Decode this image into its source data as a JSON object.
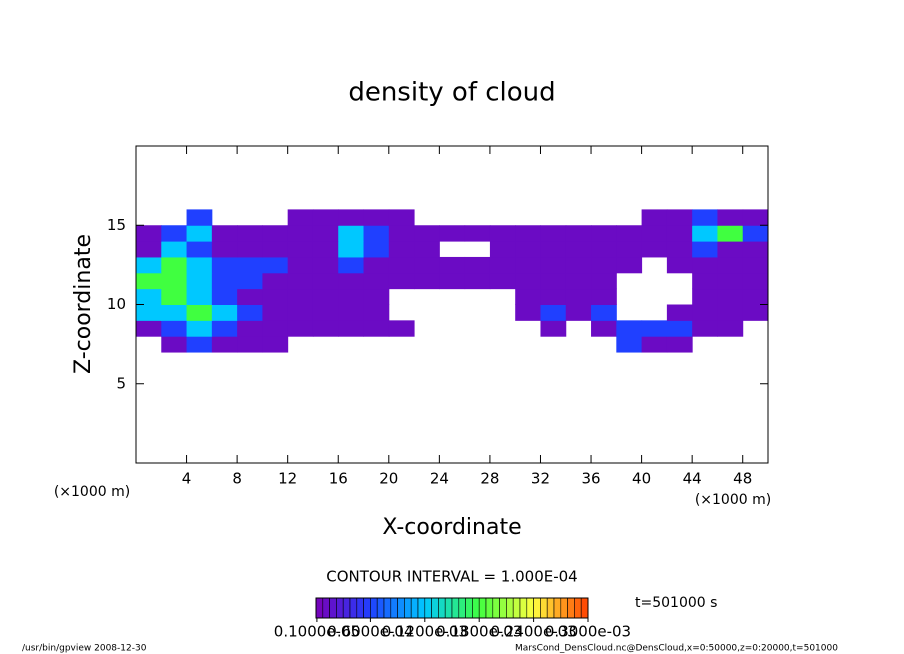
{
  "chart_data": {
    "type": "heatmap",
    "title": "density of cloud",
    "x_label": "X-coordinate",
    "y_label": "Z-coordinate",
    "x_unit": "(×1000 m)",
    "y_unit": "(×1000 m)",
    "xlim": [
      0,
      50
    ],
    "ylim": [
      0,
      20
    ],
    "xticks": [
      4,
      8,
      12,
      16,
      20,
      24,
      28,
      32,
      36,
      40,
      44,
      48
    ],
    "yticks": [
      5,
      10,
      15
    ],
    "xbins": [
      0,
      2,
      4,
      6,
      8,
      10,
      12,
      14,
      16,
      18,
      20,
      22,
      24,
      26,
      28,
      30,
      32,
      34,
      36,
      38,
      40,
      42,
      44,
      46,
      48,
      50
    ],
    "zbins": [
      7,
      8,
      9,
      10,
      11,
      12,
      13,
      14,
      15,
      16
    ],
    "values": [
      [
        null,
        1e-05,
        6e-05,
        1e-05,
        1e-05,
        1e-05,
        null,
        null,
        null,
        null,
        null,
        null,
        null,
        null,
        null,
        null,
        null,
        null,
        null,
        6e-05,
        1e-05,
        1e-05,
        null,
        null,
        null
      ],
      [
        1e-05,
        6e-05,
        0.00012,
        6e-05,
        1e-05,
        1e-05,
        1e-05,
        1e-05,
        1e-05,
        1e-05,
        1e-05,
        null,
        null,
        null,
        null,
        null,
        1e-05,
        null,
        1e-05,
        6e-05,
        6e-05,
        6e-05,
        1e-05,
        1e-05,
        null
      ],
      [
        0.00012,
        0.00012,
        0.00018,
        0.00012,
        6e-05,
        1e-05,
        1e-05,
        1e-05,
        1e-05,
        1e-05,
        null,
        null,
        null,
        null,
        null,
        1e-05,
        6e-05,
        1e-05,
        6e-05,
        null,
        null,
        1e-05,
        1e-05,
        1e-05,
        1e-05
      ],
      [
        0.00012,
        0.00018,
        0.00012,
        6e-05,
        1e-05,
        1e-05,
        1e-05,
        1e-05,
        1e-05,
        1e-05,
        null,
        null,
        null,
        null,
        null,
        1e-05,
        1e-05,
        1e-05,
        1e-05,
        null,
        null,
        null,
        1e-05,
        1e-05,
        1e-05
      ],
      [
        0.00018,
        0.00018,
        0.00012,
        6e-05,
        6e-05,
        1e-05,
        1e-05,
        1e-05,
        1e-05,
        1e-05,
        1e-05,
        1e-05,
        1e-05,
        1e-05,
        1e-05,
        1e-05,
        1e-05,
        1e-05,
        1e-05,
        null,
        null,
        null,
        1e-05,
        1e-05,
        1e-05
      ],
      [
        0.00012,
        0.00018,
        0.00012,
        6e-05,
        6e-05,
        6e-05,
        1e-05,
        1e-05,
        6e-05,
        1e-05,
        1e-05,
        1e-05,
        1e-05,
        1e-05,
        1e-05,
        1e-05,
        1e-05,
        1e-05,
        1e-05,
        1e-05,
        null,
        1e-05,
        1e-05,
        1e-05,
        1e-05
      ],
      [
        1e-05,
        0.00012,
        6e-05,
        1e-05,
        1e-05,
        1e-05,
        1e-05,
        1e-05,
        0.00012,
        6e-05,
        1e-05,
        1e-05,
        null,
        null,
        1e-05,
        1e-05,
        1e-05,
        1e-05,
        1e-05,
        1e-05,
        1e-05,
        1e-05,
        6e-05,
        1e-05,
        1e-05
      ],
      [
        1e-05,
        6e-05,
        0.00012,
        1e-05,
        1e-05,
        1e-05,
        1e-05,
        1e-05,
        0.00012,
        6e-05,
        1e-05,
        1e-05,
        1e-05,
        1e-05,
        1e-05,
        1e-05,
        1e-05,
        1e-05,
        1e-05,
        1e-05,
        1e-05,
        1e-05,
        0.00012,
        0.00018,
        6e-05
      ],
      [
        null,
        null,
        6e-05,
        null,
        null,
        null,
        1e-05,
        1e-05,
        1e-05,
        1e-05,
        1e-05,
        null,
        null,
        null,
        null,
        null,
        null,
        null,
        null,
        null,
        1e-05,
        1e-05,
        6e-05,
        1e-05,
        1e-05
      ]
    ],
    "colorscale": [
      "#7a00b8",
      "#2040ff",
      "#00c8ff",
      "#40ff40",
      "#ffff40",
      "#ff4000"
    ],
    "clim": [
      0,
      0.0003
    ],
    "contour_label": "CONTOUR INTERVAL = 1.000E-04",
    "time_label": "t=501000 s",
    "colorbar_ticks": [
      {
        "value": 1e-06,
        "label": "0.1000e-05"
      },
      {
        "value": 6e-05,
        "label": "0.6000e-04"
      },
      {
        "value": 0.00012,
        "label": "0.1200e-03"
      },
      {
        "value": 0.00018,
        "label": "0.1800e-03"
      },
      {
        "value": 0.00024,
        "label": "0.2400e-03"
      },
      {
        "value": 0.0003,
        "label": "0.3000e-03"
      }
    ],
    "footer_left": "/usr/bin/gpview  2008-12-30",
    "footer_right": "MarsCond_DensCloud.nc@DensCloud,x=0:50000,z=0:20000,t=501000"
  }
}
